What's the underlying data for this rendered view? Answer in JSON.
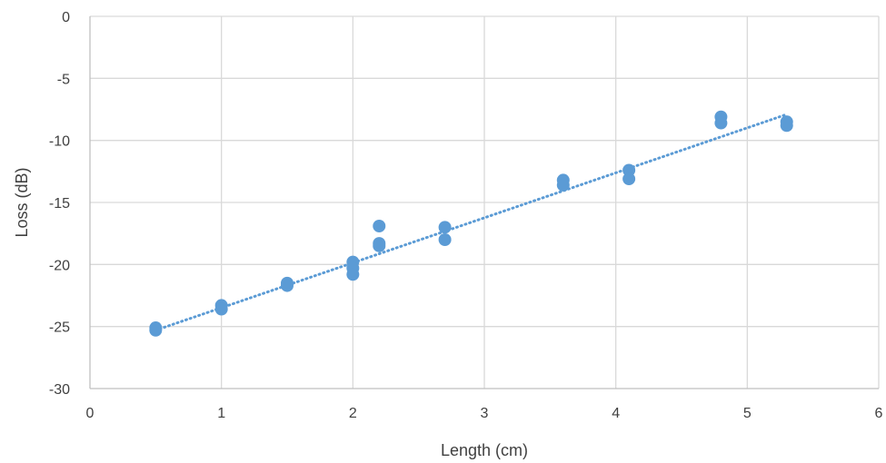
{
  "chart_data": {
    "type": "scatter",
    "title": "",
    "xlabel": "Length (cm)",
    "ylabel": "Loss (dB)",
    "xlim": [
      0,
      6
    ],
    "ylim": [
      -30,
      0
    ],
    "x_ticks": [
      0,
      1,
      2,
      3,
      4,
      5,
      6
    ],
    "y_ticks": [
      0,
      -5,
      -10,
      -15,
      -20,
      -25,
      -30
    ],
    "grid": true,
    "legend": "none",
    "marker_color": "#5B9BD5",
    "trendline": {
      "type": "linear",
      "style": "dotted",
      "color": "#5B9BD5",
      "x": [
        0.5,
        5.3
      ],
      "y": [
        -25.3,
        -7.9
      ]
    },
    "points": [
      {
        "x": 0.5,
        "y": -25.1
      },
      {
        "x": 0.5,
        "y": -25.3
      },
      {
        "x": 1.0,
        "y": -23.3
      },
      {
        "x": 1.0,
        "y": -23.6
      },
      {
        "x": 1.5,
        "y": -21.5
      },
      {
        "x": 1.5,
        "y": -21.7
      },
      {
        "x": 2.0,
        "y": -19.8
      },
      {
        "x": 2.0,
        "y": -20.3
      },
      {
        "x": 2.0,
        "y": -20.8
      },
      {
        "x": 2.2,
        "y": -16.9
      },
      {
        "x": 2.2,
        "y": -18.3
      },
      {
        "x": 2.2,
        "y": -18.5
      },
      {
        "x": 2.7,
        "y": -17.0
      },
      {
        "x": 2.7,
        "y": -18.0
      },
      {
        "x": 3.6,
        "y": -13.2
      },
      {
        "x": 3.6,
        "y": -13.6
      },
      {
        "x": 4.1,
        "y": -12.4
      },
      {
        "x": 4.1,
        "y": -13.1
      },
      {
        "x": 4.8,
        "y": -8.1
      },
      {
        "x": 4.8,
        "y": -8.6
      },
      {
        "x": 5.3,
        "y": -8.5
      },
      {
        "x": 5.3,
        "y": -8.8
      }
    ]
  }
}
